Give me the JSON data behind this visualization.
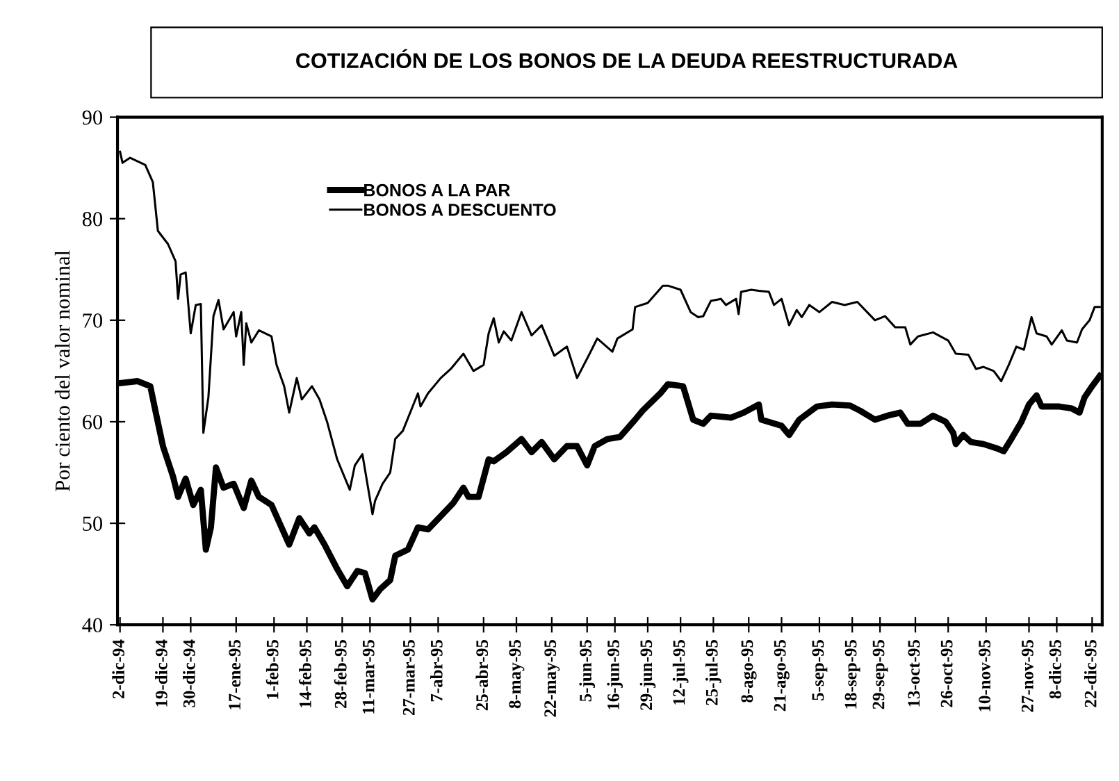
{
  "chart_data": {
    "type": "line",
    "title": "COTIZACIÓN DE LOS BONOS DE LA DEUDA REESTRUCTURADA",
    "ylabel": "Por ciento del valor nominal",
    "ylim": [
      40,
      90
    ],
    "yticks": [
      40,
      50,
      60,
      70,
      80,
      90
    ],
    "xlim": [
      "1994-12-01",
      "1995-12-26"
    ],
    "xticks": [
      {
        "value": "1994-12-02",
        "label": "2-dic-94"
      },
      {
        "value": "1994-12-19",
        "label": "19-dic-94"
      },
      {
        "value": "1994-12-30",
        "label": "30-dic-94"
      },
      {
        "value": "1995-01-17",
        "label": "17-ene-95"
      },
      {
        "value": "1995-02-01",
        "label": "1-feb-95"
      },
      {
        "value": "1995-02-14",
        "label": "14-feb-95"
      },
      {
        "value": "1995-02-28",
        "label": "28-feb-95"
      },
      {
        "value": "1995-03-11",
        "label": "11-mar-95"
      },
      {
        "value": "1995-03-27",
        "label": "27-mar-95"
      },
      {
        "value": "1995-04-07",
        "label": "7-abr-95"
      },
      {
        "value": "1995-04-25",
        "label": "25-abr-95"
      },
      {
        "value": "1995-05-08",
        "label": "8-may-95"
      },
      {
        "value": "1995-05-22",
        "label": "22-may-95"
      },
      {
        "value": "1995-06-05",
        "label": "5-jun-95"
      },
      {
        "value": "1995-06-16",
        "label": "16-jun-95"
      },
      {
        "value": "1995-06-29",
        "label": "29-jun-95"
      },
      {
        "value": "1995-07-12",
        "label": "12-jul-95"
      },
      {
        "value": "1995-07-25",
        "label": "25-jul-95"
      },
      {
        "value": "1995-08-08",
        "label": "8-ago-95"
      },
      {
        "value": "1995-08-21",
        "label": "21-ago-95"
      },
      {
        "value": "1995-09-05",
        "label": "5-sep-95"
      },
      {
        "value": "1995-09-18",
        "label": "18-sep-95"
      },
      {
        "value": "1995-09-29",
        "label": "29-sep-95"
      },
      {
        "value": "1995-10-13",
        "label": "13-oct-95"
      },
      {
        "value": "1995-10-26",
        "label": "26-oct-95"
      },
      {
        "value": "1995-11-10",
        "label": "10-nov-95"
      },
      {
        "value": "1995-11-27",
        "label": "27-nov-95"
      },
      {
        "value": "1995-12-08",
        "label": "8-dic-95"
      },
      {
        "value": "1995-12-22",
        "label": "22-dic-95"
      }
    ],
    "legend": "top left",
    "grid": false,
    "marker": "none",
    "line_style": "solid",
    "series": [
      {
        "name": "BONOS A LA PAR",
        "color": "#000000",
        "x": [
          "1994-12-02",
          "1994-12-09",
          "1994-12-14",
          "1994-12-16",
          "1994-12-19",
          "1994-12-23",
          "1994-12-25",
          "1994-12-28",
          "1994-12-31",
          "1995-01-03",
          "1995-01-05",
          "1995-01-07",
          "1995-01-09",
          "1995-01-12",
          "1995-01-16",
          "1995-01-20",
          "1995-01-23",
          "1995-01-26",
          "1995-01-31",
          "1995-02-07",
          "1995-02-11",
          "1995-02-15",
          "1995-02-17",
          "1995-02-21",
          "1995-02-26",
          "1995-03-02",
          "1995-03-06",
          "1995-03-09",
          "1995-03-12",
          "1995-03-15",
          "1995-03-19",
          "1995-03-21",
          "1995-03-26",
          "1995-03-30",
          "1995-04-03",
          "1995-04-08",
          "1995-04-13",
          "1995-04-17",
          "1995-04-19",
          "1995-04-23",
          "1995-04-27",
          "1995-04-29",
          "1995-05-04",
          "1995-05-10",
          "1995-05-14",
          "1995-05-18",
          "1995-05-23",
          "1995-05-28",
          "1995-06-01",
          "1995-06-05",
          "1995-06-08",
          "1995-06-13",
          "1995-06-18",
          "1995-06-24",
          "1995-06-27",
          "1995-07-04",
          "1995-07-07",
          "1995-07-13",
          "1995-07-17",
          "1995-07-21",
          "1995-07-24",
          "1995-08-01",
          "1995-08-06",
          "1995-08-12",
          "1995-08-13",
          "1995-08-21",
          "1995-08-24",
          "1995-08-28",
          "1995-09-04",
          "1995-09-10",
          "1995-09-17",
          "1995-09-21",
          "1995-09-27",
          "1995-10-02",
          "1995-10-07",
          "1995-10-10",
          "1995-10-15",
          "1995-10-20",
          "1995-10-25",
          "1995-10-28",
          "1995-10-29",
          "1995-11-01",
          "1995-11-04",
          "1995-11-09",
          "1995-11-14",
          "1995-11-17",
          "1995-11-20",
          "1995-11-24",
          "1995-11-27",
          "1995-11-30",
          "1995-12-02",
          "1995-12-09",
          "1995-12-14",
          "1995-12-17",
          "1995-12-19",
          "1995-12-22",
          "1995-12-25"
        ],
        "values": [
          63.8,
          64.0,
          63.5,
          61.1,
          57.6,
          54.6,
          52.6,
          54.4,
          51.8,
          53.3,
          47.4,
          49.6,
          55.5,
          53.5,
          53.9,
          51.5,
          54.2,
          52.6,
          51.8,
          47.9,
          50.5,
          49.0,
          49.6,
          47.9,
          45.5,
          43.8,
          45.3,
          45.1,
          42.5,
          43.5,
          44.4,
          46.8,
          47.4,
          49.6,
          49.4,
          50.7,
          52.0,
          53.5,
          52.6,
          52.6,
          56.3,
          56.1,
          57.0,
          58.3,
          57.0,
          58.0,
          56.3,
          57.6,
          57.6,
          55.7,
          57.6,
          58.3,
          58.5,
          60.2,
          61.1,
          62.8,
          63.7,
          63.5,
          60.2,
          59.8,
          60.6,
          60.4,
          60.9,
          61.7,
          60.2,
          59.6,
          58.7,
          60.2,
          61.5,
          61.7,
          61.6,
          61.1,
          60.2,
          60.6,
          60.9,
          59.8,
          59.8,
          60.6,
          60.0,
          58.9,
          57.8,
          58.7,
          58.0,
          57.8,
          57.4,
          57.1,
          58.3,
          60.0,
          61.7,
          62.6,
          61.5,
          61.5,
          61.3,
          60.9,
          62.4,
          63.5,
          64.5
        ]
      },
      {
        "name": "BONOS A DESCUENTO",
        "color": "#000000",
        "x": [
          "1994-12-02",
          "1994-12-03",
          "1994-12-06",
          "1994-12-12",
          "1994-12-15",
          "1994-12-17",
          "1994-12-21",
          "1994-12-24",
          "1994-12-25",
          "1994-12-26",
          "1994-12-28",
          "1994-12-30",
          "1995-01-01",
          "1995-01-03",
          "1995-01-04",
          "1995-01-06",
          "1995-01-08",
          "1995-01-10",
          "1995-01-12",
          "1995-01-16",
          "1995-01-17",
          "1995-01-19",
          "1995-01-20",
          "1995-01-21",
          "1995-01-23",
          "1995-01-26",
          "1995-01-31",
          "1995-02-02",
          "1995-02-05",
          "1995-02-07",
          "1995-02-10",
          "1995-02-12",
          "1995-02-16",
          "1995-02-19",
          "1995-02-22",
          "1995-02-26",
          "1995-03-03",
          "1995-03-05",
          "1995-03-08",
          "1995-03-12",
          "1995-03-13",
          "1995-03-16",
          "1995-03-19",
          "1995-03-21",
          "1995-03-24",
          "1995-03-30",
          "1995-03-31",
          "1995-04-03",
          "1995-04-08",
          "1995-04-12",
          "1995-04-17",
          "1995-04-21",
          "1995-04-25",
          "1995-04-27",
          "1995-04-29",
          "1995-05-01",
          "1995-05-03",
          "1995-05-06",
          "1995-05-10",
          "1995-05-14",
          "1995-05-18",
          "1995-05-23",
          "1995-05-28",
          "1995-06-01",
          "1995-06-06",
          "1995-06-09",
          "1995-06-15",
          "1995-06-17",
          "1995-06-23",
          "1995-06-24",
          "1995-06-29",
          "1995-07-05",
          "1995-07-07",
          "1995-07-12",
          "1995-07-16",
          "1995-07-19",
          "1995-07-21",
          "1995-07-24",
          "1995-07-28",
          "1995-07-30",
          "1995-08-03",
          "1995-08-04",
          "1995-08-05",
          "1995-08-09",
          "1995-08-12",
          "1995-08-16",
          "1995-08-18",
          "1995-08-21",
          "1995-08-24",
          "1995-08-27",
          "1995-08-29",
          "1995-09-01",
          "1995-09-05",
          "1995-09-10",
          "1995-09-15",
          "1995-09-20",
          "1995-09-27",
          "1995-10-01",
          "1995-10-05",
          "1995-10-09",
          "1995-10-11",
          "1995-10-14",
          "1995-10-20",
          "1995-10-26",
          "1995-10-29",
          "1995-11-03",
          "1995-11-06",
          "1995-11-09",
          "1995-11-13",
          "1995-11-16",
          "1995-11-19",
          "1995-11-22",
          "1995-11-25",
          "1995-11-28",
          "1995-11-30",
          "1995-12-04",
          "1995-12-06",
          "1995-12-10",
          "1995-12-12",
          "1995-12-16",
          "1995-12-18",
          "1995-12-21",
          "1995-12-23",
          "1995-12-25"
        ],
        "values": [
          86.6,
          85.5,
          86.0,
          85.3,
          83.6,
          78.8,
          77.5,
          75.8,
          72.1,
          74.5,
          74.7,
          68.7,
          71.5,
          71.6,
          58.9,
          62.4,
          70.4,
          72.0,
          69.1,
          70.8,
          68.4,
          70.8,
          65.6,
          69.7,
          67.8,
          69.0,
          68.4,
          65.6,
          63.5,
          60.9,
          64.3,
          62.2,
          63.5,
          62.2,
          60.0,
          56.3,
          53.3,
          55.7,
          56.8,
          50.9,
          52.2,
          53.9,
          55.0,
          58.3,
          59.1,
          62.8,
          61.5,
          62.8,
          64.3,
          65.2,
          66.7,
          65.0,
          65.6,
          68.7,
          70.2,
          67.8,
          68.9,
          68.0,
          70.8,
          68.5,
          69.5,
          66.5,
          67.4,
          64.3,
          66.7,
          68.2,
          66.9,
          68.2,
          69.1,
          71.3,
          71.7,
          73.4,
          73.4,
          73.0,
          70.8,
          70.3,
          70.4,
          71.9,
          72.1,
          71.5,
          72.1,
          70.6,
          72.8,
          73.0,
          72.9,
          72.8,
          71.5,
          72.1,
          69.5,
          71.0,
          70.3,
          71.5,
          70.8,
          71.8,
          71.5,
          71.8,
          70.0,
          70.4,
          69.3,
          69.3,
          67.6,
          68.4,
          68.8,
          68.0,
          66.7,
          66.6,
          65.2,
          65.4,
          65.0,
          64.0,
          65.6,
          67.4,
          67.1,
          70.3,
          68.7,
          68.4,
          67.6,
          69.0,
          68.0,
          67.8,
          69.1,
          70.0,
          71.3,
          71.3
        ]
      }
    ]
  }
}
